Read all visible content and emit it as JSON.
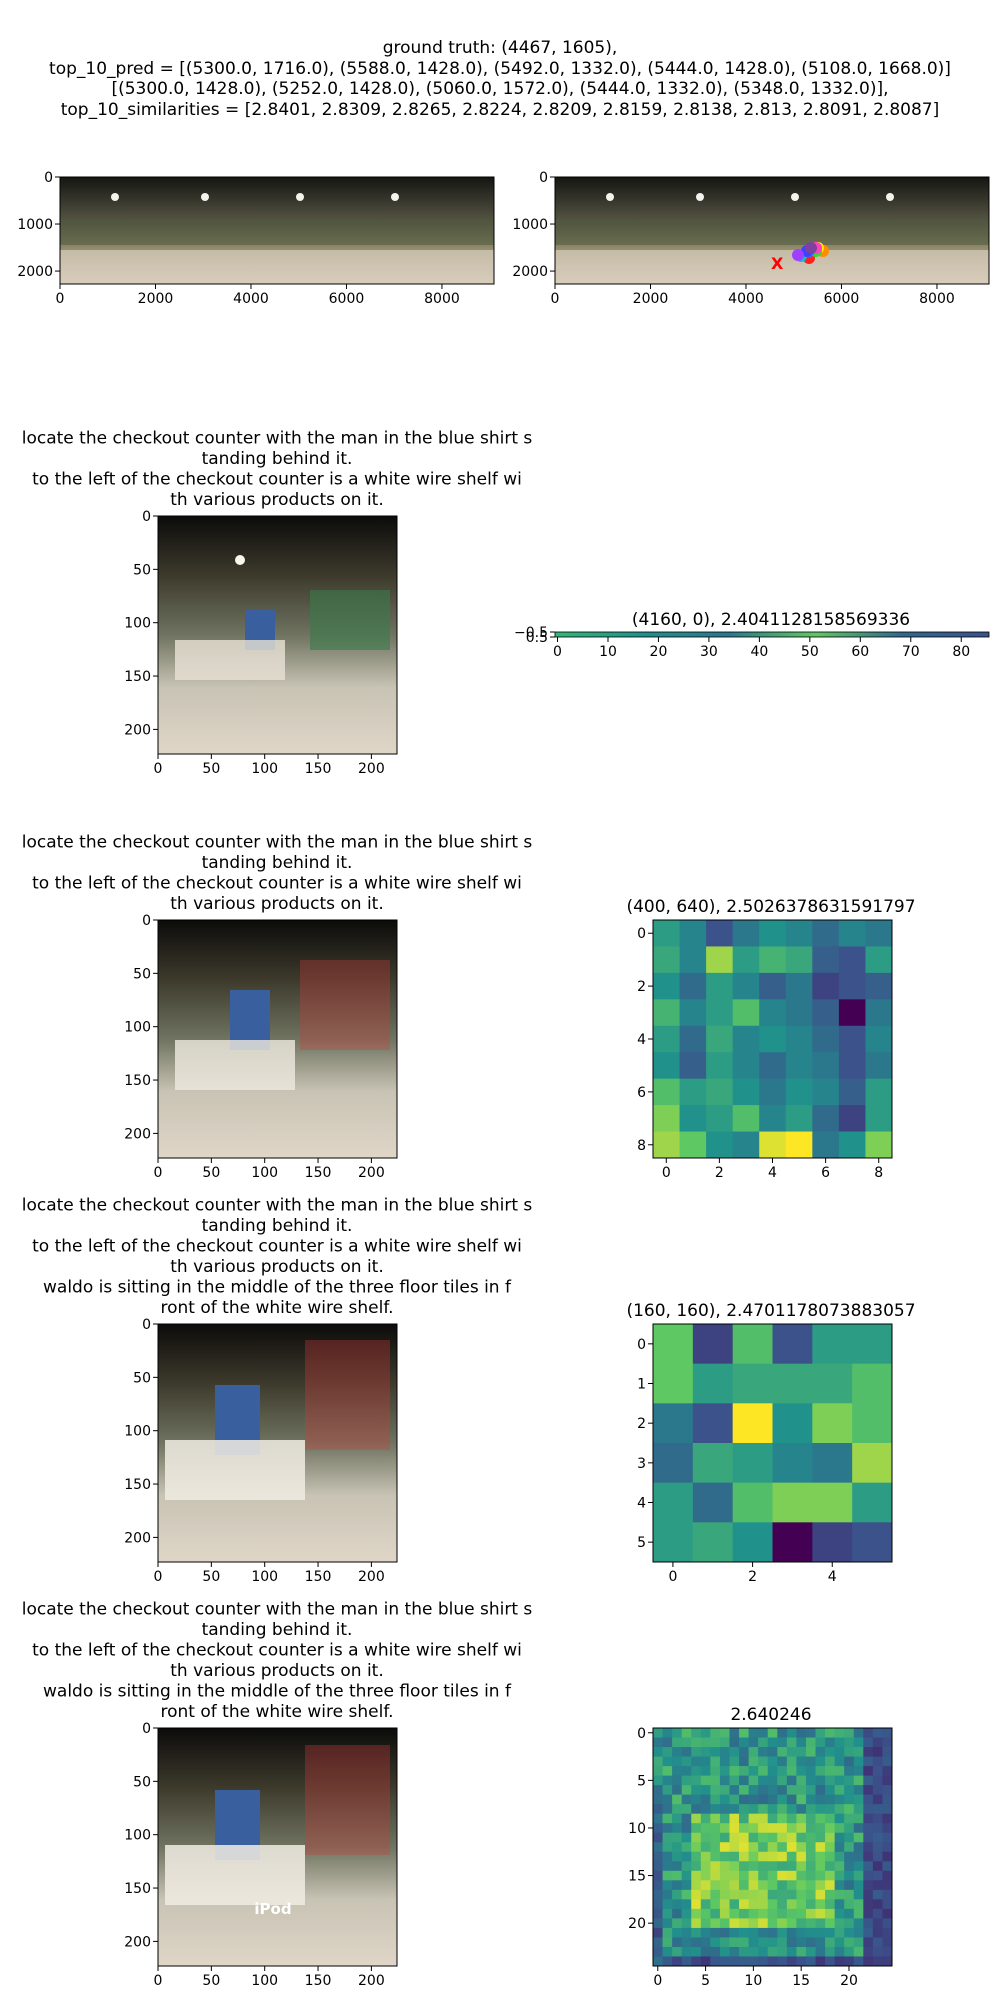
{
  "header": {
    "line1": "ground truth: (4467, 1605),",
    "line2": "top_10_pred = [(5300.0, 1716.0), (5588.0, 1428.0), (5492.0, 1332.0), (5444.0, 1428.0), (5108.0, 1668.0)]",
    "line3": "[(5300.0, 1428.0), (5252.0, 1428.0), (5060.0, 1572.0), (5444.0, 1332.0), (5348.0, 1332.0)],",
    "line4": "top_10_similarities = [2.8401, 2.8309, 2.8265, 2.8224, 2.8209, 2.8159, 2.8138, 2.813, 2.8091, 2.8087]"
  },
  "captions": {
    "row1": [
      "locate the checkout counter with the man in the blue shirt s",
      "tanding behind it.",
      "to the left of the checkout counter is a white wire shelf wi",
      "th various products on it."
    ],
    "row2": [
      "locate the checkout counter with the man in the blue shirt s",
      "tanding behind it.",
      "to the left of the checkout counter is a white wire shelf wi",
      "th various products on it."
    ],
    "row3": [
      "locate the checkout counter with the man in the blue shirt s",
      "tanding behind it.",
      "to the left of the checkout counter is a white wire shelf wi",
      "th various products on it.",
      "waldo is sitting in the middle of the three floor tiles in f",
      "ront of the white wire shelf."
    ],
    "row4": [
      "locate the checkout counter with the man in the blue shirt s",
      "tanding behind it.",
      "to the left of the checkout counter is a white wire shelf wi",
      "th various products on it.",
      "waldo is sitting in the middle of the three floor tiles in f",
      "ront of the white wire shelf."
    ]
  },
  "image_overlay_text": "iPod",
  "colors": {
    "viridis_low": "#440154",
    "viridis_mid": "#21918c",
    "viridis_high": "#fde725"
  },
  "chart_data": [
    {
      "type": "image",
      "name": "panorama",
      "xticks": [
        "0",
        "2000",
        "4000",
        "6000",
        "8000"
      ],
      "yticks": [
        "0",
        "1000",
        "2000"
      ]
    },
    {
      "type": "image",
      "name": "panorama-with-predictions",
      "xticks": [
        "0",
        "2000",
        "4000",
        "6000",
        "8000"
      ],
      "yticks": [
        "0",
        "1000",
        "2000"
      ],
      "marker": "X",
      "ground_truth": [
        4467,
        1605
      ]
    },
    {
      "type": "image",
      "name": "crop-1",
      "xticks": [
        "0",
        "50",
        "100",
        "150",
        "200"
      ],
      "yticks": [
        "0",
        "50",
        "100",
        "150",
        "200"
      ]
    },
    {
      "type": "heatmap",
      "name": "heatmap-strip",
      "title": "(4160, 0), 2.4041128158569336",
      "xticks": [
        "0",
        "10",
        "20",
        "30",
        "40",
        "50",
        "60",
        "70",
        "80"
      ],
      "yticks": [
        "−0.5",
        "0.5"
      ],
      "cols": 86
    },
    {
      "type": "image",
      "name": "crop-2",
      "xticks": [
        "0",
        "50",
        "100",
        "150",
        "200"
      ],
      "yticks": [
        "0",
        "50",
        "100",
        "150",
        "200"
      ]
    },
    {
      "type": "heatmap",
      "name": "heatmap-9x9",
      "title": "(400, 640), 2.5026378631591797",
      "xticks": [
        "0",
        "2",
        "4",
        "6",
        "8"
      ],
      "yticks": [
        "0",
        "2",
        "4",
        "6",
        "8"
      ],
      "size": 9,
      "values": [
        [
          0.55,
          0.45,
          0.25,
          0.4,
          0.5,
          0.45,
          0.35,
          0.45,
          0.4
        ],
        [
          0.6,
          0.45,
          0.85,
          0.55,
          0.65,
          0.6,
          0.3,
          0.25,
          0.55
        ],
        [
          0.5,
          0.35,
          0.55,
          0.45,
          0.3,
          0.4,
          0.2,
          0.25,
          0.3
        ],
        [
          0.65,
          0.45,
          0.55,
          0.7,
          0.45,
          0.4,
          0.3,
          0.0,
          0.4
        ],
        [
          0.55,
          0.35,
          0.6,
          0.45,
          0.5,
          0.45,
          0.35,
          0.25,
          0.45
        ],
        [
          0.5,
          0.3,
          0.55,
          0.45,
          0.35,
          0.45,
          0.4,
          0.25,
          0.4
        ],
        [
          0.7,
          0.55,
          0.6,
          0.5,
          0.4,
          0.5,
          0.45,
          0.3,
          0.55
        ],
        [
          0.8,
          0.5,
          0.55,
          0.7,
          0.45,
          0.55,
          0.35,
          0.2,
          0.55
        ],
        [
          0.85,
          0.75,
          0.5,
          0.45,
          0.95,
          1.0,
          0.4,
          0.5,
          0.8
        ]
      ]
    },
    {
      "type": "image",
      "name": "crop-3",
      "xticks": [
        "0",
        "50",
        "100",
        "150",
        "200"
      ],
      "yticks": [
        "0",
        "50",
        "100",
        "150",
        "200"
      ]
    },
    {
      "type": "heatmap",
      "name": "heatmap-6x6",
      "title": "(160, 160), 2.4701178073883057",
      "xticks": [
        "0",
        "2",
        "4"
      ],
      "yticks": [
        "0",
        "1",
        "2",
        "3",
        "4",
        "5"
      ],
      "size": 6,
      "values": [
        [
          0.75,
          0.2,
          0.7,
          0.25,
          0.55,
          0.55
        ],
        [
          0.75,
          0.55,
          0.6,
          0.6,
          0.6,
          0.7
        ],
        [
          0.4,
          0.25,
          1.0,
          0.5,
          0.8,
          0.7
        ],
        [
          0.35,
          0.6,
          0.55,
          0.45,
          0.4,
          0.85
        ],
        [
          0.55,
          0.35,
          0.7,
          0.8,
          0.8,
          0.55
        ],
        [
          0.55,
          0.6,
          0.5,
          0.0,
          0.2,
          0.25
        ]
      ]
    },
    {
      "type": "image",
      "name": "crop-4",
      "xticks": [
        "0",
        "50",
        "100",
        "150",
        "200"
      ],
      "yticks": [
        "0",
        "50",
        "100",
        "150",
        "200"
      ]
    },
    {
      "type": "heatmap",
      "name": "heatmap-25x25",
      "title": "2.640246",
      "xticks": [
        "0",
        "5",
        "10",
        "15",
        "20"
      ],
      "yticks": [
        "0",
        "5",
        "10",
        "15",
        "20"
      ],
      "size": 25
    }
  ]
}
